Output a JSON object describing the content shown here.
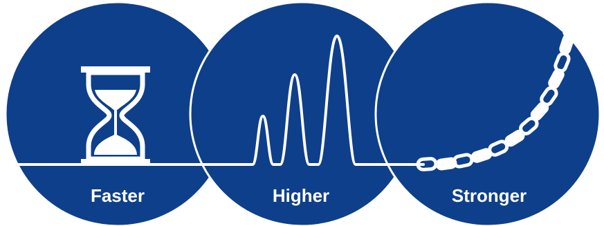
{
  "colors": {
    "circle_fill": "#0e3f8a",
    "line": "#ffffff",
    "background": "#ffffff"
  },
  "panels": [
    {
      "label": "Faster",
      "icon": "hourglass-icon"
    },
    {
      "label": "Higher",
      "icon": "peaks-icon"
    },
    {
      "label": "Stronger",
      "icon": "chain-icon"
    }
  ]
}
